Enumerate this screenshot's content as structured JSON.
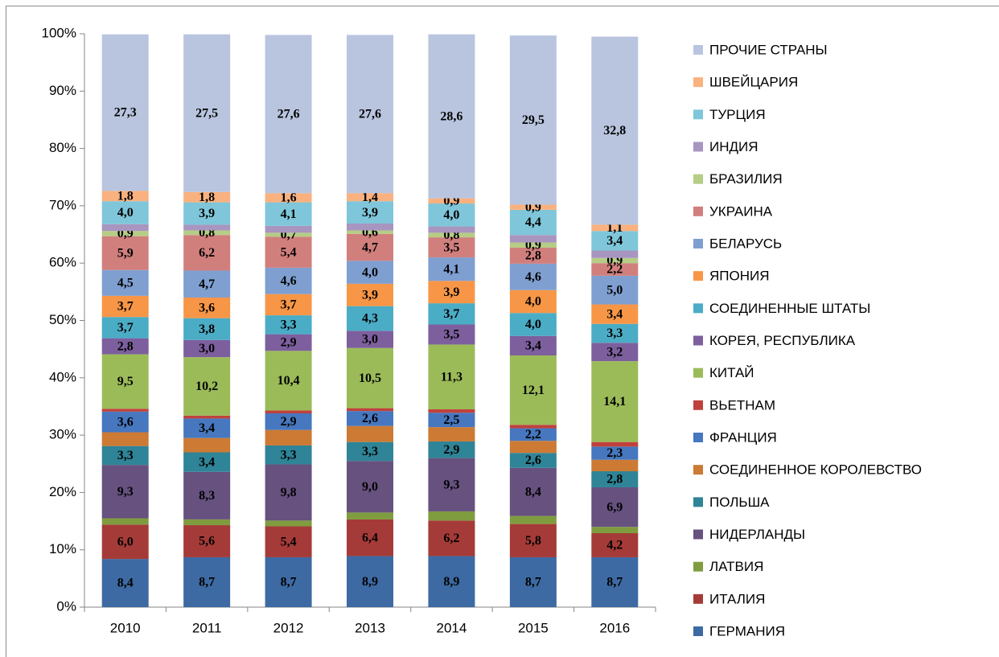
{
  "chart_data": {
    "type": "stacked_bar_100",
    "categories": [
      "2010",
      "2011",
      "2012",
      "2013",
      "2014",
      "2015",
      "2016"
    ],
    "ylim": [
      0,
      100
    ],
    "yticks": [
      {
        "value": 0,
        "label": "0%"
      },
      {
        "value": 10,
        "label": "10%"
      },
      {
        "value": 20,
        "label": "20%"
      },
      {
        "value": 30,
        "label": "30%"
      },
      {
        "value": 40,
        "label": "40%"
      },
      {
        "value": 50,
        "label": "50%"
      },
      {
        "value": 60,
        "label": "60%"
      },
      {
        "value": 70,
        "label": "70%"
      },
      {
        "value": 80,
        "label": "80%"
      },
      {
        "value": 90,
        "label": "90%"
      },
      {
        "value": 100,
        "label": "100%"
      }
    ],
    "grid": false,
    "legend": "right",
    "series": [
      {
        "name": "ГЕРМАНИЯ",
        "color": "#3d6aa3",
        "values": [
          8.4,
          8.7,
          8.7,
          8.9,
          8.9,
          8.7,
          8.7
        ],
        "value_labels": [
          "8,4",
          "8,7",
          "8,7",
          "8,9",
          "8,9",
          "8,7",
          "8,7"
        ]
      },
      {
        "name": "ИТАЛИЯ",
        "color": "#a53b38",
        "values": [
          6.0,
          5.6,
          5.4,
          6.4,
          6.2,
          5.8,
          4.2
        ],
        "value_labels": [
          "6,0",
          "5,6",
          "5,4",
          "6,4",
          "6,2",
          "5,8",
          "4,2"
        ]
      },
      {
        "name": "ЛАТВИЯ",
        "color": "#7f9c3f",
        "values": [
          1.1,
          1.0,
          1.0,
          1.2,
          1.6,
          1.4,
          1.1
        ],
        "value_labels": [
          null,
          null,
          null,
          null,
          null,
          null,
          null
        ]
      },
      {
        "name": "НИДЕРЛАНДЫ",
        "color": "#66517f",
        "values": [
          9.3,
          8.3,
          9.8,
          9.0,
          9.3,
          8.4,
          6.9
        ],
        "value_labels": [
          "9,3",
          "8,3",
          "9,8",
          "9,0",
          "9,3",
          "8,4",
          "6,9"
        ]
      },
      {
        "name": "ПОЛЬША",
        "color": "#2f8497",
        "values": [
          3.3,
          3.4,
          3.3,
          3.3,
          2.9,
          2.6,
          2.8
        ],
        "value_labels": [
          "3,3",
          "3,4",
          "3,3",
          "3,3",
          "2,9",
          "2,6",
          "2,8"
        ]
      },
      {
        "name": "СОЕДИНЕННОЕ КОРОЛЕВСТВО",
        "color": "#cc7a34",
        "values": [
          2.4,
          2.5,
          2.7,
          2.8,
          2.5,
          2.1,
          2.0
        ],
        "value_labels": [
          null,
          null,
          null,
          null,
          null,
          null,
          null
        ]
      },
      {
        "name": "ФРАНЦИЯ",
        "color": "#4677bf",
        "values": [
          3.6,
          3.4,
          2.9,
          2.6,
          2.5,
          2.2,
          2.3
        ],
        "value_labels": [
          "3,6",
          "3,4",
          "2,9",
          "2,6",
          "2,5",
          "2,2",
          "2,3"
        ]
      },
      {
        "name": "ВЬЕТНАМ",
        "color": "#c0413c",
        "values": [
          0.5,
          0.5,
          0.5,
          0.5,
          0.6,
          0.6,
          0.8
        ],
        "value_labels": [
          null,
          null,
          null,
          null,
          null,
          null,
          null
        ]
      },
      {
        "name": "КИТАЙ",
        "color": "#9bbb59",
        "values": [
          9.5,
          10.2,
          10.4,
          10.5,
          11.3,
          12.1,
          14.1
        ],
        "value_labels": [
          "9,5",
          "10,2",
          "10,4",
          "10,5",
          "11,3",
          "12,1",
          "14,1"
        ]
      },
      {
        "name": "КОРЕЯ, РЕСПУБЛИКА",
        "color": "#7d5f9e",
        "values": [
          2.8,
          3.0,
          2.9,
          3.0,
          3.5,
          3.4,
          3.2
        ],
        "value_labels": [
          "2,8",
          "3,0",
          "2,9",
          "3,0",
          "3,5",
          "3,4",
          "3,2"
        ]
      },
      {
        "name": "СОЕДИНЕННЫЕ ШТАТЫ",
        "color": "#4bacc6",
        "values": [
          3.7,
          3.8,
          3.3,
          4.3,
          3.7,
          4.0,
          3.3
        ],
        "value_labels": [
          "3,7",
          "3,8",
          "3,3",
          "4,3",
          "3,7",
          "4,0",
          "3,3"
        ]
      },
      {
        "name": "ЯПОНИЯ",
        "color": "#f79646",
        "values": [
          3.7,
          3.6,
          3.7,
          3.9,
          3.9,
          4.0,
          3.4
        ],
        "value_labels": [
          "3,7",
          "3,6",
          "3,7",
          "3,9",
          "3,9",
          "4,0",
          "3,4"
        ]
      },
      {
        "name": "БЕЛАРУСЬ",
        "color": "#7f9fd1",
        "values": [
          4.5,
          4.7,
          4.6,
          4.0,
          4.1,
          4.6,
          5.0
        ],
        "value_labels": [
          "4,5",
          "4,7",
          "4,6",
          "4,0",
          "4,1",
          "4,6",
          "5,0"
        ]
      },
      {
        "name": "УКРАИНА",
        "color": "#d17f7d",
        "values": [
          5.9,
          6.2,
          5.4,
          4.7,
          3.5,
          2.8,
          2.2
        ],
        "value_labels": [
          "5,9",
          "6,2",
          "5,4",
          "4,7",
          "3,5",
          "2,8",
          "2,2"
        ]
      },
      {
        "name": "БРАЗИЛИЯ",
        "color": "#b5cd85",
        "values": [
          0.9,
          0.8,
          0.7,
          0.6,
          0.8,
          0.9,
          0.9
        ],
        "value_labels": [
          "0,9",
          "0,8",
          "0,7",
          "0,6",
          "0,8",
          "0,9",
          "0,9"
        ]
      },
      {
        "name": "ИНДИЯ",
        "color": "#a895c0",
        "values": [
          1.2,
          1.0,
          1.2,
          1.2,
          1.1,
          1.3,
          1.3
        ],
        "value_labels": [
          null,
          null,
          null,
          null,
          null,
          null,
          null
        ]
      },
      {
        "name": "ТУРЦИЯ",
        "color": "#7fc6da",
        "values": [
          4.0,
          3.9,
          4.1,
          3.9,
          4.0,
          4.4,
          3.4
        ],
        "value_labels": [
          "4,0",
          "3,9",
          "4,1",
          "3,9",
          "4,0",
          "4,4",
          "3,4"
        ]
      },
      {
        "name": "ШВЕЙЦАРИЯ",
        "color": "#f9b17f",
        "values": [
          1.8,
          1.8,
          1.6,
          1.4,
          0.9,
          0.9,
          1.1
        ],
        "value_labels": [
          "1,8",
          "1,8",
          "1,6",
          "1,4",
          "0,9",
          "0,9",
          "1,1"
        ]
      },
      {
        "name": "ПРОЧИЕ СТРАНЫ",
        "color": "#b9c5df",
        "values": [
          27.3,
          27.5,
          27.6,
          27.6,
          28.6,
          29.5,
          32.8
        ],
        "value_labels": [
          "27,3",
          "27,5",
          "27,6",
          "27,6",
          "28,6",
          "29,5",
          "32,8"
        ]
      }
    ]
  }
}
